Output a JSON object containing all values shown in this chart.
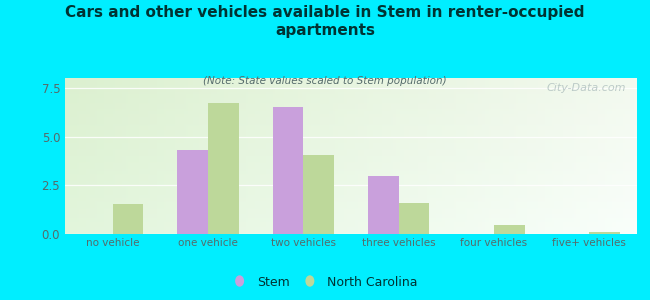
{
  "title": "Cars and other vehicles available in Stem in renter-occupied\napartments",
  "subtitle": "(Note: State values scaled to Stem population)",
  "categories": [
    "no vehicle",
    "one vehicle",
    "two vehicles",
    "three vehicles",
    "four vehicles",
    "five+ vehicles"
  ],
  "stem_values": [
    0,
    4.3,
    6.5,
    3.0,
    0,
    0
  ],
  "nc_values": [
    1.55,
    6.7,
    4.05,
    1.6,
    0.45,
    0.12
  ],
  "stem_color": "#c9a0dc",
  "nc_color": "#bdd89a",
  "title_color": "#003333",
  "subtitle_color": "#556b6b",
  "tick_color": "#556b6b",
  "background_color": "#00eeff",
  "ylim": [
    0,
    8
  ],
  "yticks": [
    0,
    2.5,
    5,
    7.5
  ],
  "bar_width": 0.32,
  "legend_stem": "Stem",
  "legend_nc": "North Carolina",
  "watermark": "City-Data.com"
}
